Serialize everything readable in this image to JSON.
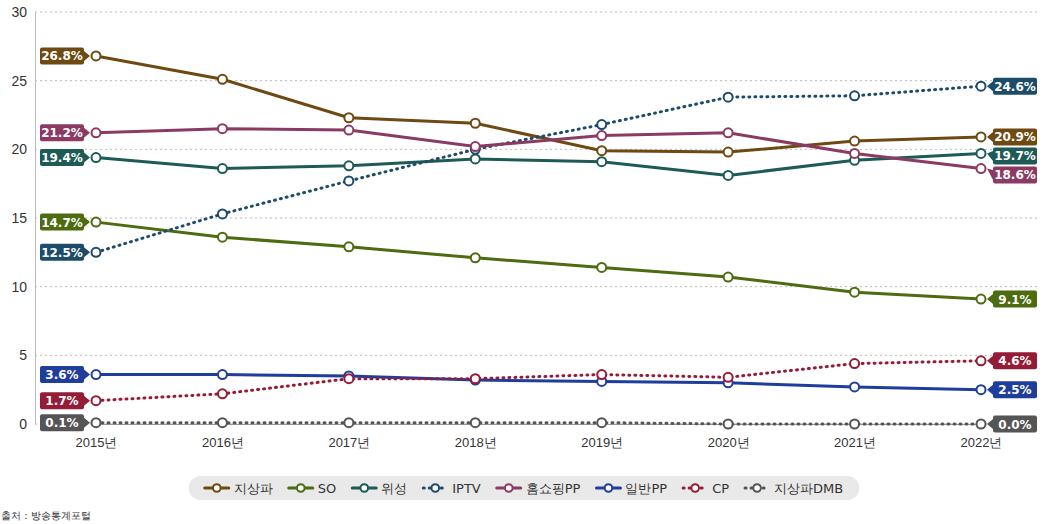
{
  "chart_data": {
    "type": "line",
    "categories": [
      "2015년",
      "2016년",
      "2017년",
      "2018년",
      "2019년",
      "2020년",
      "2021년",
      "2022년"
    ],
    "series": [
      {
        "name": "지상파",
        "color": "#6e4a12",
        "line_style": "solid",
        "marker": "circle",
        "values": [
          26.8,
          25.1,
          22.3,
          21.9,
          19.9,
          19.8,
          20.6,
          20.9
        ],
        "value_labels": [
          "26.8%",
          null,
          null,
          null,
          null,
          null,
          null,
          "20.9%"
        ]
      },
      {
        "name": "SO",
        "color": "#4d6b10",
        "line_style": "solid",
        "marker": "circle",
        "values": [
          14.7,
          13.6,
          12.9,
          12.1,
          11.4,
          10.7,
          9.6,
          9.1
        ],
        "value_labels": [
          "14.7%",
          null,
          null,
          null,
          null,
          null,
          null,
          "9.1%"
        ]
      },
      {
        "name": "위성",
        "color": "#1e5b57",
        "line_style": "solid",
        "marker": "circle",
        "values": [
          19.4,
          18.6,
          18.8,
          19.3,
          19.1,
          18.1,
          19.2,
          19.7
        ],
        "value_labels": [
          "19.4%",
          null,
          null,
          null,
          null,
          null,
          null,
          "19.7%"
        ]
      },
      {
        "name": "IPTV",
        "color": "#1d4b6a",
        "line_style": "dotted",
        "marker": "circle",
        "values": [
          12.5,
          15.3,
          17.7,
          20.0,
          21.8,
          23.8,
          23.9,
          24.6
        ],
        "value_labels": [
          "12.5%",
          null,
          null,
          null,
          null,
          null,
          null,
          "24.6%"
        ]
      },
      {
        "name": "홈쇼핑PP",
        "color": "#8b3b63",
        "line_style": "solid",
        "marker": "circle",
        "values": [
          21.2,
          21.5,
          21.4,
          20.2,
          21.0,
          21.2,
          19.7,
          18.6
        ],
        "value_labels": [
          "21.2%",
          null,
          null,
          null,
          null,
          null,
          null,
          "18.6%"
        ]
      },
      {
        "name": "일반PP",
        "color": "#1f3e9c",
        "line_style": "solid",
        "marker": "circle",
        "values": [
          3.6,
          3.6,
          3.5,
          3.2,
          3.1,
          3.0,
          2.7,
          2.5
        ],
        "value_labels": [
          "3.6%",
          null,
          null,
          null,
          null,
          null,
          null,
          "2.5%"
        ]
      },
      {
        "name": "CP",
        "color": "#951c37",
        "line_style": "dotted",
        "marker": "circle",
        "values": [
          1.7,
          2.2,
          3.3,
          3.3,
          3.6,
          3.4,
          4.4,
          4.6
        ],
        "value_labels": [
          "1.7%",
          null,
          null,
          null,
          null,
          null,
          null,
          "4.6%"
        ]
      },
      {
        "name": "지상파DMB",
        "color": "#555555",
        "line_style": "dotted",
        "marker": "circle",
        "values": [
          0.1,
          0.1,
          0.1,
          0.1,
          0.1,
          0.0,
          0.0,
          0.0
        ],
        "value_labels": [
          "0.1%",
          null,
          null,
          null,
          null,
          null,
          null,
          "0.0%"
        ]
      }
    ],
    "ylim": [
      0,
      30
    ],
    "yticks": [
      0,
      5,
      10,
      15,
      20,
      25,
      30
    ],
    "grid": true,
    "legend": "bottom",
    "data_labels": true,
    "source": "출처 : 방송통계포털"
  }
}
